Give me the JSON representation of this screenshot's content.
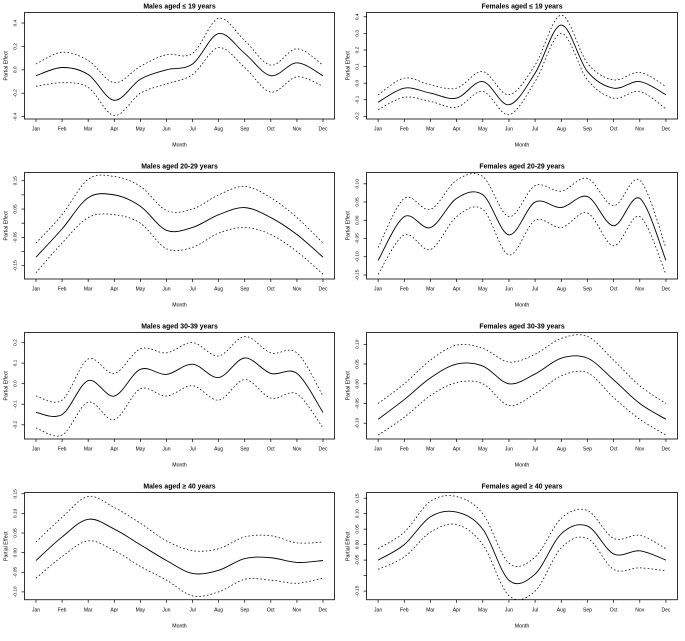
{
  "figure": {
    "background": "#ffffff",
    "line_color": "#000000",
    "n_rows": 4,
    "n_cols": 2
  },
  "chart_data": [
    {
      "type": "line",
      "title": "Males aged ≤ 19 years",
      "xlabel": "Month",
      "ylabel": "Partial Effect",
      "categories": [
        "Jan",
        "Feb",
        "Mar",
        "Apr",
        "May",
        "Jun",
        "Jul",
        "Aug",
        "Sep",
        "Oct",
        "Nov",
        "Dec"
      ],
      "ylim": [
        -0.42,
        0.49
      ],
      "yticks": [
        {
          "v": 0.4,
          "label": "0.4"
        },
        {
          "v": 0.2,
          "label": "0.2"
        },
        {
          "v": 0.0,
          "label": "0.0"
        },
        {
          "v": -0.2,
          "label": "-0.2"
        },
        {
          "v": -0.4,
          "label": "-0.4"
        }
      ],
      "series": [
        {
          "name": "solid",
          "style": "solid",
          "values": [
            -0.05,
            0.02,
            -0.04,
            -0.26,
            -0.08,
            0.0,
            0.05,
            0.31,
            0.14,
            -0.05,
            0.06,
            -0.05
          ]
        },
        {
          "name": "upper-dotted",
          "style": "dotted",
          "values": [
            0.05,
            0.15,
            0.08,
            -0.11,
            0.03,
            0.13,
            0.14,
            0.44,
            0.25,
            0.04,
            0.18,
            0.04
          ]
        },
        {
          "name": "lower-dotted",
          "style": "dotted",
          "values": [
            -0.14,
            -0.11,
            -0.15,
            -0.39,
            -0.2,
            -0.12,
            -0.04,
            0.19,
            0.02,
            -0.19,
            -0.06,
            -0.14
          ]
        }
      ]
    },
    {
      "type": "line",
      "title": "Females aged ≤ 19 years",
      "xlabel": "Month",
      "ylabel": "Partial Effect",
      "categories": [
        "Jan",
        "Feb",
        "Mar",
        "Apr",
        "May",
        "Jun",
        "Jul",
        "Aug",
        "Sep",
        "Oct",
        "Nov",
        "Dec"
      ],
      "ylim": [
        -0.216,
        0.426
      ],
      "yticks": [
        {
          "v": 0.4,
          "label": "0.4"
        },
        {
          "v": 0.3,
          "label": "0.3"
        },
        {
          "v": 0.2,
          "label": "0.2"
        },
        {
          "v": 0.1,
          "label": "0.1"
        },
        {
          "v": 0.0,
          "label": "0.0"
        },
        {
          "v": -0.1,
          "label": "-0.1"
        },
        {
          "v": -0.2,
          "label": "-0.2"
        }
      ],
      "series": [
        {
          "name": "solid",
          "style": "solid",
          "values": [
            -0.115,
            -0.03,
            -0.06,
            -0.09,
            0.01,
            -0.13,
            0.06,
            0.35,
            0.07,
            -0.03,
            0.01,
            -0.07
          ]
        },
        {
          "name": "upper-dotted",
          "style": "dotted",
          "values": [
            -0.07,
            0.03,
            -0.01,
            -0.03,
            0.07,
            -0.07,
            0.11,
            0.41,
            0.12,
            0.02,
            0.065,
            -0.02
          ]
        },
        {
          "name": "lower-dotted",
          "style": "dotted",
          "values": [
            -0.16,
            -0.085,
            -0.11,
            -0.145,
            -0.05,
            -0.19,
            0.01,
            0.3,
            0.02,
            -0.09,
            -0.05,
            -0.155
          ]
        }
      ]
    },
    {
      "type": "line",
      "title": "Males aged 20-29 years",
      "xlabel": "Month",
      "ylabel": "Partial Effect",
      "categories": [
        "Jan",
        "Feb",
        "Mar",
        "Apr",
        "May",
        "Jun",
        "Jul",
        "Aug",
        "Sep",
        "Oct",
        "Nov",
        "Dec"
      ],
      "ylim": [
        -0.197,
        0.179
      ],
      "yticks": [
        {
          "v": 0.15,
          "label": "0.15"
        },
        {
          "v": 0.1,
          "label": ""
        },
        {
          "v": 0.05,
          "label": "0.05"
        },
        {
          "v": 0.0,
          "label": ""
        },
        {
          "v": -0.05,
          "label": "-0.05"
        },
        {
          "v": -0.1,
          "label": ""
        },
        {
          "v": -0.15,
          "label": "-0.15"
        }
      ],
      "series": [
        {
          "name": "solid",
          "style": "solid",
          "values": [
            -0.12,
            -0.02,
            0.09,
            0.1,
            0.06,
            -0.025,
            -0.015,
            0.03,
            0.055,
            0.02,
            -0.04,
            -0.12
          ]
        },
        {
          "name": "upper-dotted",
          "style": "dotted",
          "values": [
            -0.07,
            0.03,
            0.155,
            0.165,
            0.13,
            0.045,
            0.05,
            0.1,
            0.13,
            0.09,
            0.02,
            -0.07
          ]
        },
        {
          "name": "lower-dotted",
          "style": "dotted",
          "values": [
            -0.175,
            -0.07,
            0.02,
            0.03,
            0.0,
            -0.09,
            -0.085,
            -0.035,
            -0.015,
            -0.04,
            -0.1,
            -0.18
          ]
        }
      ]
    },
    {
      "type": "line",
      "title": "Females aged 20-29 years",
      "xlabel": "Month",
      "ylabel": "Partial Effect",
      "categories": [
        "Jan",
        "Feb",
        "Mar",
        "Apr",
        "May",
        "Jun",
        "Jul",
        "Aug",
        "Sep",
        "Oct",
        "Nov",
        "Dec"
      ],
      "ylim": [
        -0.161,
        0.131
      ],
      "yticks": [
        {
          "v": 0.1,
          "label": "0.10"
        },
        {
          "v": 0.05,
          "label": "0.05"
        },
        {
          "v": 0.0,
          "label": "0.00"
        },
        {
          "v": -0.05,
          "label": "-0.05"
        },
        {
          "v": -0.1,
          "label": "-0.10"
        },
        {
          "v": -0.15,
          "label": "-0.15"
        }
      ],
      "series": [
        {
          "name": "solid",
          "style": "solid",
          "values": [
            -0.11,
            0.01,
            -0.02,
            0.06,
            0.07,
            -0.04,
            0.05,
            0.035,
            0.065,
            -0.015,
            0.06,
            -0.11
          ]
        },
        {
          "name": "upper-dotted",
          "style": "dotted",
          "values": [
            -0.075,
            0.06,
            0.03,
            0.11,
            0.12,
            0.01,
            0.095,
            0.08,
            0.115,
            0.04,
            0.11,
            -0.075
          ]
        },
        {
          "name": "lower-dotted",
          "style": "dotted",
          "values": [
            -0.148,
            -0.04,
            -0.08,
            0.01,
            0.03,
            -0.095,
            0.0,
            -0.02,
            0.02,
            -0.07,
            0.01,
            -0.148
          ]
        }
      ]
    },
    {
      "type": "line",
      "title": "Males aged 30-39 years",
      "xlabel": "Month",
      "ylabel": "Partial Effect",
      "categories": [
        "Jan",
        "Feb",
        "Mar",
        "Apr",
        "May",
        "Jun",
        "Jul",
        "Aug",
        "Sep",
        "Oct",
        "Nov",
        "Dec"
      ],
      "ylim": [
        -0.269,
        0.249
      ],
      "yticks": [
        {
          "v": 0.2,
          "label": "0.2"
        },
        {
          "v": 0.1,
          "label": "0.1"
        },
        {
          "v": 0.0,
          "label": "0.0"
        },
        {
          "v": -0.1,
          "label": "-0.1"
        },
        {
          "v": -0.2,
          "label": "-0.2"
        }
      ],
      "series": [
        {
          "name": "solid",
          "style": "solid",
          "values": [
            -0.14,
            -0.15,
            0.015,
            -0.06,
            0.07,
            0.045,
            0.095,
            0.03,
            0.125,
            0.05,
            0.05,
            -0.14
          ]
        },
        {
          "name": "upper-dotted",
          "style": "dotted",
          "values": [
            -0.06,
            -0.08,
            0.12,
            0.05,
            0.17,
            0.15,
            0.2,
            0.135,
            0.23,
            0.15,
            0.15,
            -0.06
          ]
        },
        {
          "name": "lower-dotted",
          "style": "dotted",
          "values": [
            -0.215,
            -0.25,
            -0.09,
            -0.175,
            -0.025,
            -0.06,
            -0.01,
            -0.08,
            0.02,
            -0.07,
            -0.05,
            -0.215
          ]
        }
      ]
    },
    {
      "type": "line",
      "title": "Females aged 30-39 years",
      "xlabel": "Month",
      "ylabel": "Partial Effect",
      "categories": [
        "Jan",
        "Feb",
        "Mar",
        "Apr",
        "May",
        "Jun",
        "Jul",
        "Aug",
        "Sep",
        "Oct",
        "Nov",
        "Dec"
      ],
      "ylim": [
        -0.14,
        0.13
      ],
      "yticks": [
        {
          "v": 0.1,
          "label": "0.10"
        },
        {
          "v": 0.05,
          "label": "0.05"
        },
        {
          "v": 0.0,
          "label": "0.00"
        },
        {
          "v": -0.05,
          "label": "-0.05"
        },
        {
          "v": -0.1,
          "label": "-0.10"
        }
      ],
      "series": [
        {
          "name": "solid",
          "style": "solid",
          "values": [
            -0.09,
            -0.04,
            0.015,
            0.05,
            0.045,
            0.0,
            0.025,
            0.065,
            0.065,
            0.01,
            -0.05,
            -0.09
          ]
        },
        {
          "name": "upper-dotted",
          "style": "dotted",
          "values": [
            -0.05,
            0.0,
            0.06,
            0.098,
            0.09,
            0.055,
            0.075,
            0.115,
            0.12,
            0.06,
            -0.005,
            -0.05
          ]
        },
        {
          "name": "lower-dotted",
          "style": "dotted",
          "values": [
            -0.13,
            -0.085,
            -0.03,
            0.003,
            0.0,
            -0.055,
            -0.025,
            0.02,
            0.028,
            -0.035,
            -0.09,
            -0.13
          ]
        }
      ]
    },
    {
      "type": "line",
      "title": "Males aged ≥ 40 years",
      "xlabel": "Month",
      "ylabel": "Partial Effect",
      "categories": [
        "Jan",
        "Feb",
        "Mar",
        "Apr",
        "May",
        "Jun",
        "Jul",
        "Aug",
        "Sep",
        "Oct",
        "Nov",
        "Dec"
      ],
      "ylim": [
        -0.12,
        0.153
      ],
      "yticks": [
        {
          "v": 0.15,
          "label": "0.15"
        },
        {
          "v": 0.1,
          "label": "0.10"
        },
        {
          "v": 0.05,
          "label": "0.05"
        },
        {
          "v": 0.0,
          "label": "0.00"
        },
        {
          "v": -0.05,
          "label": "-0.05"
        },
        {
          "v": -0.1,
          "label": "-0.10"
        }
      ],
      "series": [
        {
          "name": "solid",
          "style": "solid",
          "values": [
            -0.02,
            0.04,
            0.085,
            0.06,
            0.02,
            -0.02,
            -0.053,
            -0.045,
            -0.015,
            -0.013,
            -0.025,
            -0.02
          ]
        },
        {
          "name": "upper-dotted",
          "style": "dotted",
          "values": [
            0.027,
            0.09,
            0.143,
            0.115,
            0.075,
            0.03,
            0.005,
            0.01,
            0.04,
            0.043,
            0.025,
            0.027
          ]
        },
        {
          "name": "lower-dotted",
          "style": "dotted",
          "values": [
            -0.065,
            -0.01,
            0.03,
            0.005,
            -0.035,
            -0.07,
            -0.11,
            -0.1,
            -0.068,
            -0.07,
            -0.078,
            -0.065
          ]
        }
      ]
    },
    {
      "type": "line",
      "title": "Females aged ≥ 40 years",
      "xlabel": "Month",
      "ylabel": "Partial Effect",
      "categories": [
        "Jan",
        "Feb",
        "Mar",
        "Apr",
        "May",
        "Jun",
        "Jul",
        "Aug",
        "Sep",
        "Oct",
        "Nov",
        "Dec"
      ],
      "ylim": [
        -0.178,
        0.168
      ],
      "yticks": [
        {
          "v": 0.15,
          "label": "0.15"
        },
        {
          "v": 0.1,
          "label": "0.10"
        },
        {
          "v": 0.05,
          "label": "0.05"
        },
        {
          "v": 0.0,
          "label": "0.00"
        },
        {
          "v": -0.05,
          "label": "-0.05"
        },
        {
          "v": -0.1,
          "label": ""
        },
        {
          "v": -0.15,
          "label": "-0.15"
        }
      ],
      "series": [
        {
          "name": "solid",
          "style": "solid",
          "values": [
            -0.05,
            0.0,
            0.09,
            0.105,
            0.05,
            -0.115,
            -0.095,
            0.035,
            0.06,
            -0.03,
            -0.02,
            -0.05
          ]
        },
        {
          "name": "upper-dotted",
          "style": "dotted",
          "values": [
            -0.013,
            0.04,
            0.14,
            0.155,
            0.1,
            -0.06,
            -0.04,
            0.085,
            0.11,
            0.02,
            0.03,
            -0.013
          ]
        },
        {
          "name": "lower-dotted",
          "style": "dotted",
          "values": [
            -0.08,
            -0.04,
            0.04,
            0.065,
            0.0,
            -0.165,
            -0.15,
            -0.01,
            0.02,
            -0.08,
            -0.075,
            -0.085
          ]
        }
      ]
    }
  ]
}
